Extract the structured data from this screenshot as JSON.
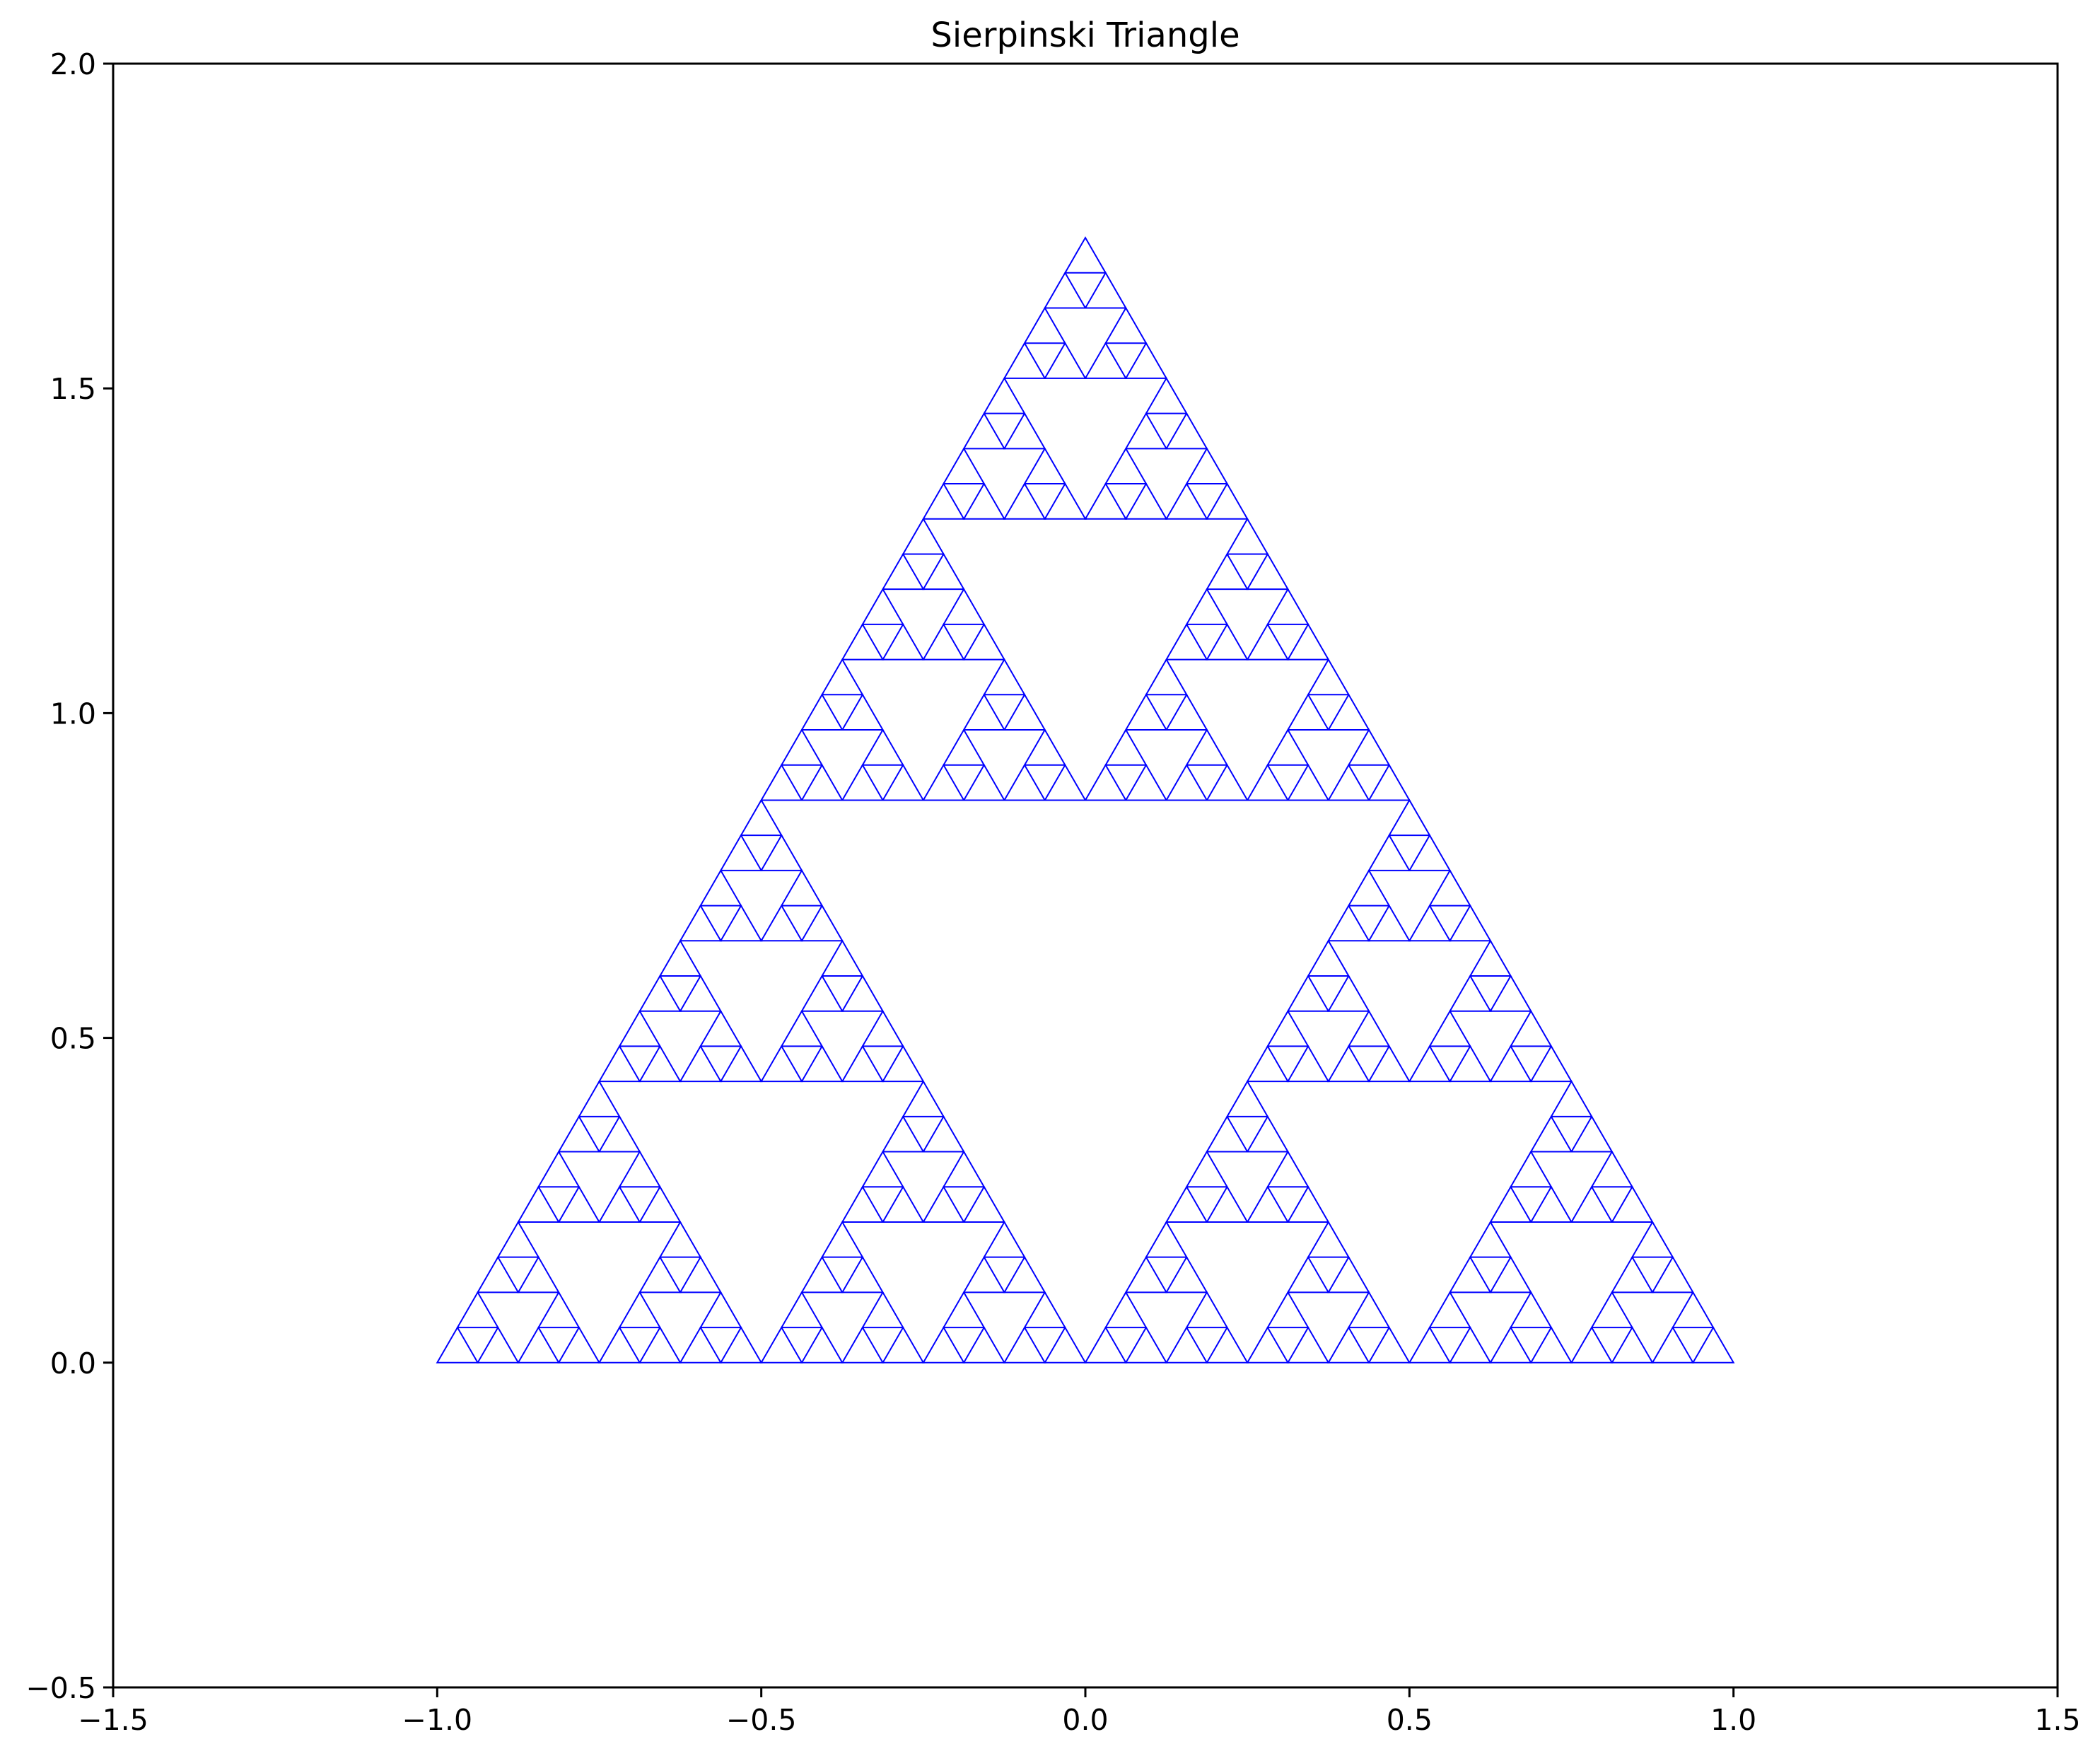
{
  "chart_data": {
    "type": "line",
    "title": "Sierpinski Triangle",
    "xlabel": "",
    "ylabel": "",
    "xlim": [
      -1.5,
      1.5
    ],
    "ylim": [
      -0.5,
      2.0
    ],
    "x_ticks": [
      -1.5,
      -1.0,
      -0.5,
      0.0,
      0.5,
      1.0,
      1.5
    ],
    "x_tick_labels": [
      "−1.5",
      "−1.0",
      "−0.5",
      "0.0",
      "0.5",
      "1.0",
      "1.5"
    ],
    "y_ticks": [
      -0.5,
      0.0,
      0.5,
      1.0,
      1.5,
      2.0
    ],
    "y_tick_labels": [
      "−0.5",
      "0.0",
      "0.5",
      "1.0",
      "1.5",
      "2.0"
    ],
    "grid": false,
    "series": [
      {
        "shape": "sierpinski-triangle",
        "vertices": [
          [
            -1.0,
            0.0
          ],
          [
            1.0,
            0.0
          ],
          [
            0.0,
            1.7320508
          ]
        ],
        "recursion_depth": 5,
        "color": "#0000ff"
      }
    ]
  }
}
